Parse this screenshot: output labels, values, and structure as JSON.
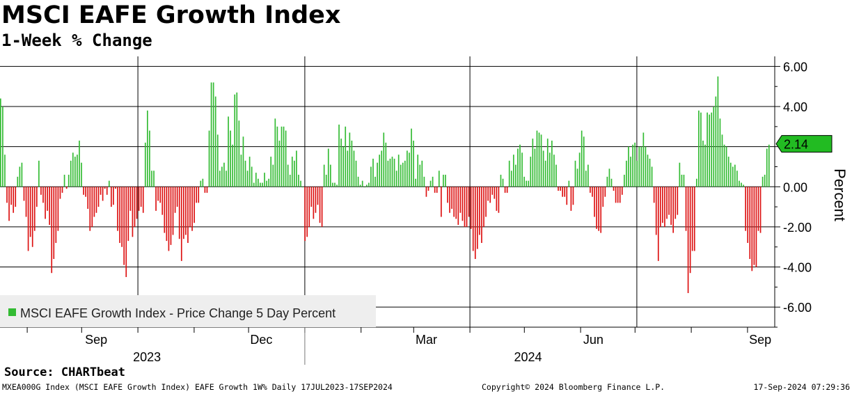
{
  "header": {
    "title": "MSCI EAFE Growth Index",
    "subtitle": "1-Week % Change"
  },
  "footer": {
    "source": "Source: CHARTbeat",
    "ticker_info": "MXEA000G Index (MSCI EAFE Growth Index) EAFE Growth 1W%  Daily 17JUL2023-17SEP2024",
    "copyright": "Copyright© 2024 Bloomberg Finance L.P.",
    "timestamp": "17-Sep-2024 07:29:36"
  },
  "colors": {
    "positive": "#33bb33",
    "negative": "#dd1111",
    "callout_fill": "#22bb22",
    "grid": "#000000",
    "legend_bg": "#eeeeee"
  },
  "chart_data": {
    "type": "bar",
    "title": "MSCI EAFE Growth Index",
    "subtitle": "1-Week % Change",
    "ylabel": "Percent",
    "xlabel": "",
    "ylim": [
      -7,
      6.5
    ],
    "yticks": [
      6,
      4,
      2,
      0,
      -2,
      -4,
      -6
    ],
    "ytick_labels": [
      "6.00",
      "4.00",
      "2.00",
      "0.00",
      "-2.00",
      "-4.00",
      "-6.00"
    ],
    "x_start": "2023-07-17",
    "x_end": "2024-09-17",
    "x_total_days": 427,
    "month_labels": [
      {
        "label": "Sep",
        "day": 53
      },
      {
        "label": "Dec",
        "day": 144
      },
      {
        "label": "Mar",
        "day": 235
      },
      {
        "label": "Jun",
        "day": 327
      },
      {
        "label": "Sep",
        "day": 419
      }
    ],
    "year_labels": [
      {
        "label": "2023",
        "day": 81
      },
      {
        "label": "2024",
        "day": 291
      }
    ],
    "quarter_gridlines_days": [
      76,
      168,
      259,
      351
    ],
    "year_separator_day": 168,
    "minor_ticks_days": [
      15,
      45,
      76,
      107,
      137,
      168,
      199,
      228,
      259,
      289,
      320,
      350,
      381,
      412
    ],
    "legend": "MSCI EAFE Growth Index - Price Change 5 Day Percent",
    "last_value": "2.14",
    "series": [
      {
        "name": "MSCI EAFE Growth Index - Price Change 5 Day Percent",
        "values": [
          4.4,
          4.0,
          1.6,
          -0.8,
          -1.7,
          -0.9,
          -1.3,
          -1.0,
          0.5,
          1.0,
          1.2,
          -0.7,
          -1.5,
          -3.2,
          -2.5,
          -3.0,
          -2.2,
          -1.0,
          1.3,
          -0.4,
          -0.8,
          -1.6,
          -1.2,
          -1.9,
          -4.3,
          -3.6,
          -2.8,
          -2.2,
          -0.6,
          -0.3,
          0.6,
          -0.1,
          0.6,
          1.3,
          1.7,
          1.5,
          1.6,
          2.3,
          1.2,
          -0.4,
          -0.5,
          -1.1,
          -2.2,
          -2.0,
          -1.5,
          -1.3,
          -1.0,
          -0.4,
          -0.7,
          -0.1,
          -0.4,
          0.3,
          -1.0,
          -0.9,
          -0.1,
          -2.2,
          -2.8,
          -3.0,
          -3.9,
          -4.5,
          -2.7,
          -1.2,
          -2.5,
          -2.0,
          -1.6,
          -1.2,
          -1.0,
          -1.3,
          2.2,
          3.8,
          2.8,
          0.8,
          0.8,
          -1.2,
          -0.7,
          -0.8,
          -1.4,
          -2.3,
          -2.7,
          -3.2,
          -2.9,
          -2.4,
          -1.3,
          -1.0,
          -2.6,
          -3.7,
          -2.6,
          -2.4,
          -2.8,
          -2.0,
          -2.2,
          -1.8,
          -0.8,
          -0.8,
          0.3,
          0.4,
          -0.3,
          -0.3,
          2.8,
          5.2,
          5.2,
          4.5,
          2.6,
          0.8,
          1.0,
          1.2,
          0.8,
          3.5,
          2.8,
          2.1,
          4.6,
          4.7,
          3.3,
          1.6,
          2.5,
          1.3,
          0.8,
          1.5,
          1.0,
          0.2,
          0.7,
          0.4,
          0.2,
          0.2,
          0.7,
          0.3,
          0.4,
          1.5,
          1.1,
          3.4,
          3.0,
          2.3,
          3.0,
          3.0,
          2.8,
          1.1,
          0.6,
          1.5,
          1.3,
          1.8,
          0.6,
          0.3,
          0.0,
          -2.7,
          -2.5,
          -2.0,
          -1.0,
          -1.6,
          -1.3,
          -0.9,
          -1.8,
          -2.0,
          1.1,
          0.6,
          1.9,
          1.1,
          0.2,
          0.2,
          0.1,
          3.1,
          2.4,
          2.0,
          3.0,
          1.8,
          2.7,
          2.3,
          1.8,
          1.3,
          0.5,
          0.1,
          0.3,
          0.0,
          0.1,
          0.2,
          1.0,
          1.4,
          0.5,
          1.2,
          1.6,
          1.8,
          2.7,
          2.2,
          1.3,
          1.4,
          1.5,
          1.4,
          0.8,
          1.6,
          1.1,
          1.2,
          1.3,
          1.8,
          1.7,
          2.9,
          2.3,
          0.4,
          1.6,
          1.1,
          1.3,
          0.5,
          -0.5,
          -0.2,
          0.3,
          0.5,
          -0.3,
          -0.3,
          0.8,
          -1.5,
          0.6,
          0.6,
          -0.8,
          -1.3,
          -1.1,
          -1.5,
          -1.6,
          -1.9,
          -1.3,
          -1.7,
          -2.0,
          -2.0,
          -1.5,
          -2.1,
          -3.2,
          -3.6,
          -3.1,
          -2.4,
          -2.8,
          -2.0,
          -1.5,
          -0.7,
          -0.8,
          -0.4,
          -0.6,
          -1.2,
          -1.3,
          0.6,
          0.4,
          -0.3,
          -0.3,
          1.3,
          0.8,
          1.6,
          1.1,
          1.9,
          2.1,
          1.7,
          0.5,
          0.3,
          0.3,
          1.5,
          2.4,
          1.9,
          2.8,
          2.7,
          2.6,
          1.8,
          1.3,
          2.4,
          1.7,
          2.3,
          1.6,
          1.1,
          -0.2,
          -0.2,
          -0.5,
          -0.5,
          -0.9,
          0.3,
          -1.2,
          -0.9,
          1.3,
          0.9,
          1.7,
          2.8,
          2.5,
          0.8,
          1.1,
          -0.3,
          -0.5,
          -1.5,
          -2.1,
          -2.2,
          -2.3,
          -1.0,
          -0.5,
          0.5,
          0.9,
          0.4,
          -0.2,
          -0.8,
          -0.8,
          -0.8,
          -0.4,
          0.6,
          1.3,
          2.0,
          1.5,
          2.1,
          2.2,
          1.3,
          2.0,
          2.0,
          2.7,
          2.0,
          1.6,
          1.4,
          1.0,
          -0.8,
          -2.4,
          -3.7,
          -2.0,
          -1.8,
          -2.0,
          -1.6,
          -1.4,
          -1.9,
          -2.3,
          -1.6,
          -1.4,
          1.2,
          0.6,
          0.6,
          -2.2,
          -5.3,
          -4.3,
          -3.2,
          -3.2,
          0.4,
          3.8,
          3.7,
          2.3,
          2.1,
          3.7,
          3.6,
          3.7,
          4.0,
          4.5,
          5.5,
          3.4,
          2.6,
          2.1,
          2.0,
          1.5,
          1.2,
          1.0,
          1.1,
          0.8,
          0.3,
          0.2,
          0.1,
          -2.2,
          -2.8,
          -3.6,
          -4.2,
          -3.9,
          -4.0,
          -2.2,
          -2.3,
          0.5,
          0.6,
          1.9,
          2.1
        ]
      }
    ]
  }
}
